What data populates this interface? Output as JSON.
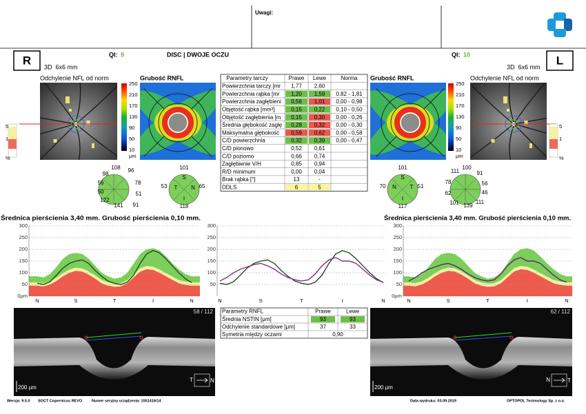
{
  "header": {
    "remarks": "Uwagi:",
    "mode": "DISC | DWOJE OCZU"
  },
  "scales": {
    "thickness": {
      "ticks": [
        250,
        210,
        170,
        130,
        90,
        50,
        10
      ],
      "unit": "μm"
    },
    "deviation": {
      "ticks": [
        5,
        1
      ],
      "unit": "%"
    }
  },
  "eyes": [
    {
      "side": "R",
      "qi_label": "QI:",
      "qi": 9,
      "qi_color": "#5cb82e",
      "scan": "3D  6x6 mm",
      "deviation_title": "Odchylenie NFL od norm",
      "thickness_title": "Grubość RNFL",
      "sectors": [
        108,
        96,
        78,
        51,
        91,
        141,
        122,
        50,
        56,
        98
      ],
      "quadrants": [
        {
          "label": "S",
          "value": 101
        },
        {
          "label": "T",
          "value": 53
        },
        {
          "label": "N",
          "value": 65
        },
        {
          "label": "I",
          "value": 118
        }
      ],
      "bscan_index": "58 / 112",
      "bscan_scale": "200 μm",
      "direction": [
        "T",
        "N"
      ]
    },
    {
      "side": "L",
      "qi_label": "QI:",
      "qi": 10,
      "qi_color": "#5cb82e",
      "scan": "3D  6x6 mm",
      "deviation_title": "Odchylenie NFL od norm",
      "thickness_title": "Grubość RNFL",
      "sectors": [
        100,
        91,
        56,
        46,
        111,
        139,
        101,
        62,
        78,
        111
      ],
      "quadrants": [
        {
          "label": "S",
          "value": 101
        },
        {
          "label": "N",
          "value": 70
        },
        {
          "label": "T",
          "value": 51
        },
        {
          "label": "I",
          "value": 117
        }
      ],
      "bscan_index": "62 / 112",
      "bscan_scale": "200 μm",
      "direction": [
        "N",
        "T"
      ]
    }
  ],
  "disc_table": {
    "columns": [
      "Parametry tarczy",
      "Prawe",
      "Lewe",
      "Norma"
    ],
    "rows": [
      {
        "label": "Powierzchnia tarczy [mr",
        "right": "1,77",
        "left": "2,60"
      },
      {
        "label": "Powierzchnia rąbka [mr",
        "right": "1,20",
        "left": "1,59",
        "norm": "0,82 - 1,81",
        "right_color": "#6cc04a",
        "left_color": "#6cc04a"
      },
      {
        "label": "Powierzchnia zagłębieni",
        "right": "0,56",
        "left": "1,01",
        "norm": "0,00 - 0,98",
        "right_color": "#6cc04a",
        "left_color": "#e8584f"
      },
      {
        "label": "Objętość rąbka [mm³]",
        "right": "0,15",
        "left": "0,22",
        "norm": "0,10 - 0,50",
        "right_color": "#6cc04a",
        "left_color": "#6cc04a"
      },
      {
        "label": "Objętość zagłębienia [m",
        "right": "0,15",
        "left": "0,30",
        "norm": "0,00 - 0,26",
        "right_color": "#6cc04a",
        "left_color": "#e8584f"
      },
      {
        "label": "Średnia głębokość zagłę",
        "right": "0,28",
        "left": "0,32",
        "norm": "0,00 - 0,30",
        "right_color": "#6cc04a",
        "left_color": "#e8584f"
      },
      {
        "label": "Maksymalna głębokość",
        "right": "0,59",
        "left": "0,62",
        "norm": "0,00 - 0,58",
        "right_color": "#e8584f",
        "left_color": "#e8584f"
      },
      {
        "label": "C/D powierzchnia",
        "right": "0,32",
        "left": "0,39",
        "norm": "0,00 - 0,47",
        "right_color": "#6cc04a",
        "left_color": "#6cc04a"
      },
      {
        "label": "C/D pionowo",
        "right": "0,52",
        "left": "0,61"
      },
      {
        "label": "C/D poziomo",
        "right": "0,66",
        "left": "0,74"
      },
      {
        "label": "Zagłębienie V/H",
        "right": "0,85",
        "left": "0,94"
      },
      {
        "label": "R/D minimum",
        "right": "0,00",
        "left": "0,04"
      },
      {
        "label": "Brak rąbka [°]",
        "right": "13",
        "left": "-"
      },
      {
        "label": "DDLS",
        "right": "6",
        "left": "5",
        "right_color": "#faf3a0",
        "left_color": "#faf3a0"
      }
    ]
  },
  "rnfl_table": {
    "columns": [
      "Parametry RNFL",
      "Prawe",
      "Lewe"
    ],
    "rows": [
      {
        "label": "Średnia NSTIN [μm]",
        "right": 93,
        "left": 93,
        "right_color": "#6cc04a",
        "left_color": "#6cc04a"
      },
      {
        "label": "Odchylenie standardowe [μm]",
        "right": 37,
        "left": 33
      }
    ],
    "symmetry": {
      "label": "Symetria między oczami",
      "value": "0,90"
    }
  },
  "chart_data": [
    {
      "type": "line",
      "title": "Średnica pierścienia 3,40 mm. Grubość pierścienia 0,10 mm.",
      "categories": [
        "N",
        null,
        null,
        null,
        null,
        null,
        "S",
        null,
        null,
        null,
        null,
        null,
        "T",
        null,
        null,
        null,
        null,
        null,
        "I",
        null,
        null,
        null,
        null,
        null,
        "N"
      ],
      "ylim": [
        0,
        300
      ],
      "yticks": [
        300,
        250,
        200,
        150,
        100,
        50,
        {
          "value": 0,
          "label": "0μm"
        }
      ],
      "grid": true,
      "bands": [
        {
          "color": "#7ccf5a",
          "values": [
            85,
            80,
            95,
            125,
            160,
            180,
            185,
            180,
            160,
            130,
            100,
            85,
            75,
            80,
            100,
            140,
            180,
            200,
            205,
            195,
            170,
            140,
            115,
            95,
            85
          ]
        },
        {
          "color": "#f4f0a6",
          "values": [
            59,
            56,
            64,
            79,
            99,
            114,
            122,
            119,
            106,
            89,
            69,
            59,
            54,
            56,
            69,
            94,
            119,
            129,
            126,
            114,
            99,
            84,
            69,
            62,
            59
          ]
        },
        {
          "color": "#ee5a4c",
          "values": [
            45,
            42,
            50,
            65,
            85,
            100,
            108,
            105,
            92,
            75,
            55,
            45,
            40,
            42,
            55,
            80,
            105,
            115,
            112,
            100,
            85,
            70,
            55,
            48,
            45
          ]
        }
      ],
      "series": [
        {
          "name": "Prawe",
          "color": "#1e4f1e",
          "values": [
            55,
            50,
            62,
            90,
            120,
            140,
            150,
            155,
            140,
            110,
            85,
            65,
            55,
            50,
            60,
            90,
            140,
            180,
            195,
            185,
            160,
            130,
            100,
            75,
            58
          ]
        }
      ]
    },
    {
      "type": "line",
      "categories": [
        "N",
        null,
        null,
        null,
        null,
        null,
        "S",
        null,
        null,
        null,
        null,
        null,
        "T",
        null,
        null,
        null,
        null,
        null,
        "I",
        null,
        null,
        null,
        null,
        null,
        "N"
      ],
      "ylim": [
        0,
        300
      ],
      "yticks": [
        300,
        250,
        200,
        150,
        100,
        50
      ],
      "grid": true,
      "series": [
        {
          "name": "Prawe",
          "color": "#1e4f1e",
          "values": [
            55,
            50,
            62,
            90,
            120,
            140,
            150,
            155,
            140,
            110,
            85,
            65,
            55,
            50,
            60,
            90,
            140,
            180,
            195,
            185,
            160,
            130,
            100,
            75,
            58
          ]
        },
        {
          "name": "Lewe",
          "color": "#8a2a8a",
          "values": [
            65,
            80,
            100,
            115,
            125,
            135,
            140,
            130,
            115,
            95,
            80,
            70,
            65,
            70,
            95,
            130,
            155,
            165,
            150,
            150,
            140,
            115,
            90,
            70,
            60
          ]
        }
      ]
    },
    {
      "type": "line",
      "title": "Średnica pierścienia 3,40 mm. Grubość pierścienia 0,10 mm.",
      "categories": [
        "N",
        null,
        null,
        null,
        null,
        null,
        "S",
        null,
        null,
        null,
        null,
        null,
        "T",
        null,
        null,
        null,
        null,
        null,
        "I",
        null,
        null,
        null,
        null,
        null,
        "N"
      ],
      "ylim": [
        0,
        300
      ],
      "yticks": [
        300,
        250,
        200,
        150,
        100,
        50,
        {
          "value": 0,
          "label": "0μm"
        }
      ],
      "grid": true,
      "bands": [
        {
          "color": "#7ccf5a",
          "values": [
            85,
            80,
            95,
            125,
            160,
            180,
            185,
            180,
            160,
            130,
            100,
            85,
            75,
            80,
            100,
            140,
            180,
            200,
            205,
            195,
            170,
            140,
            115,
            95,
            85
          ]
        },
        {
          "color": "#f4f0a6",
          "values": [
            59,
            56,
            64,
            79,
            99,
            114,
            122,
            119,
            106,
            89,
            69,
            59,
            54,
            56,
            69,
            94,
            119,
            129,
            126,
            114,
            99,
            84,
            69,
            62,
            59
          ]
        },
        {
          "color": "#ee5a4c",
          "values": [
            45,
            42,
            50,
            65,
            85,
            100,
            108,
            105,
            92,
            75,
            55,
            45,
            40,
            42,
            55,
            80,
            105,
            115,
            112,
            100,
            85,
            70,
            55,
            48,
            45
          ]
        }
      ],
      "series": [
        {
          "name": "Lewe",
          "color": "#5a2a6a",
          "values": [
            65,
            80,
            100,
            115,
            125,
            135,
            140,
            130,
            115,
            95,
            80,
            70,
            65,
            70,
            95,
            130,
            155,
            165,
            150,
            150,
            140,
            115,
            90,
            70,
            60
          ]
        }
      ]
    }
  ],
  "footer": {
    "version": "Wersja: 9.5.0",
    "device": "SOCT Copernicus REVO",
    "serial": "Numer seryjny urządzenia: 1551416/14",
    "date": "Data wydruku: 03.09.2019",
    "company": "OPTOPOL Technology Sp. z o.o."
  }
}
